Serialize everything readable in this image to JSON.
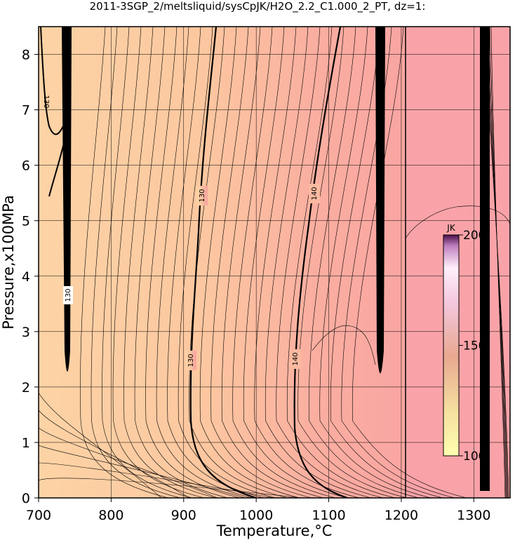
{
  "chart_data": {
    "type": "contour",
    "title": "2011-3SGP_2/meltsliquid/sysCpJK/H2O_2.2_C1.000_2_PT, dz=1:",
    "x_label": "Temperature,°C",
    "y_label": "Pressure,x100MPa",
    "xlim": [
      700,
      1350
    ],
    "xticks": [
      700,
      800,
      900,
      1000,
      1100,
      1200,
      1300
    ],
    "ylim": [
      0,
      8.5
    ],
    "yticks": [
      0,
      1,
      2,
      3,
      4,
      5,
      6,
      7,
      8
    ],
    "grid": true,
    "contour_labels": [
      130,
      140
    ],
    "colorbar": {
      "title": "JK",
      "clim": [
        100,
        200
      ],
      "ticks": [
        100,
        150,
        200
      ]
    }
  }
}
